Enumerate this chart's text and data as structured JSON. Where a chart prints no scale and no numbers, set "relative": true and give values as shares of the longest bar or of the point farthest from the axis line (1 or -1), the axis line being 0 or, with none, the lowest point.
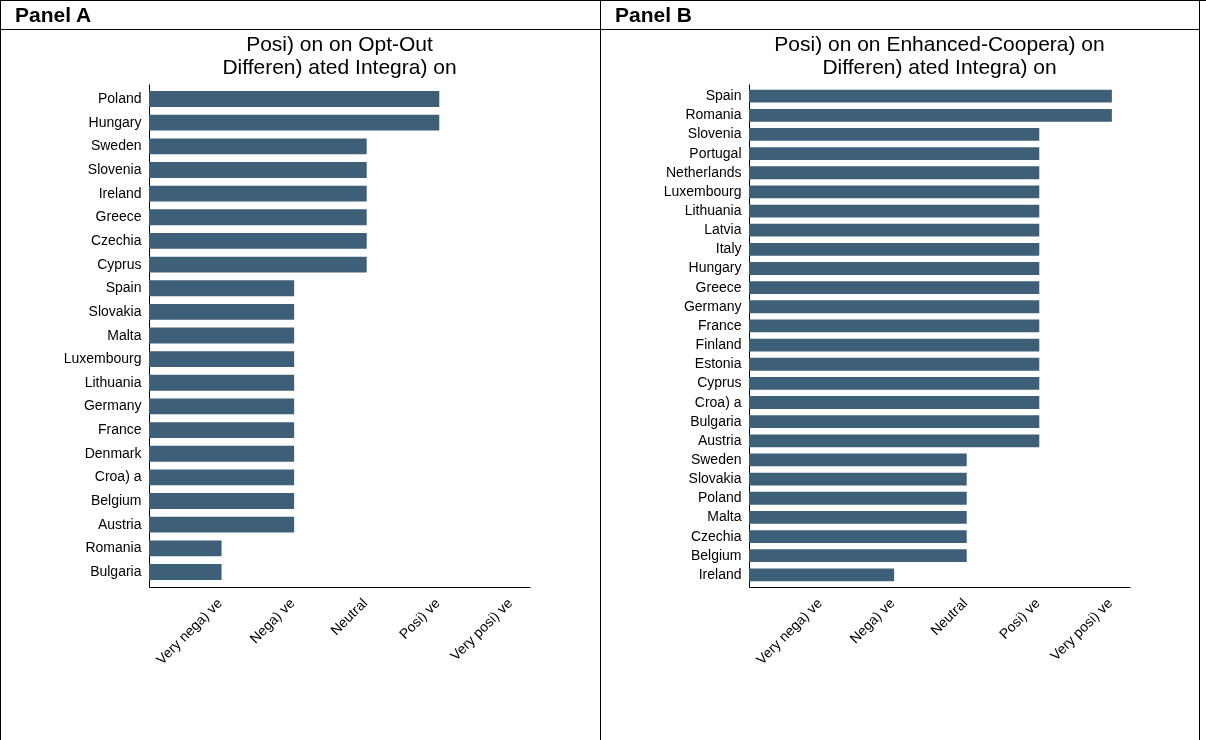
{
  "chart_data": [
    {
      "type": "bar",
      "orientation": "horizontal",
      "relative": true,
      "title": "Posi) on on Opt-Out\nDifferen) ated Integra) on",
      "annotations": [
        "Panel A",
        "Very nega) ve",
        "Nega) ve",
        "Neutral",
        "Posi) ve",
        "Very posi) ve"
      ],
      "categories": [
        "Poland",
        "Hungary",
        "Sweden",
        "Slovenia",
        "Ireland",
        "Greece",
        "Czechia",
        "Cyprus",
        "Spain",
        "Slovakia",
        "Malta",
        "Luxembourg",
        "Lithuania",
        "Germany",
        "France",
        "Denmark",
        "Croa) a",
        "Belgium",
        "Austria",
        "Romania",
        "Bulgaria"
      ],
      "values": [
        1,
        1,
        0.75,
        0.75,
        0.75,
        0.75,
        0.75,
        0.75,
        0.5,
        0.5,
        0.5,
        0.5,
        0.5,
        0.5,
        0.5,
        0.5,
        0.5,
        0.5,
        0.5,
        0.25,
        0.25
      ],
      "color": "#3e5f78"
    },
    {
      "type": "bar",
      "orientation": "horizontal",
      "relative": true,
      "title": "Posi) on on Enhanced-Coopera) on\nDifferen) ated Integra) on",
      "annotations": [
        "Panel B",
        "Very nega) ve",
        "Nega) ve",
        "Neutral",
        "Posi) ve",
        "Very posi) ve"
      ],
      "categories": [
        "Spain",
        "Romania",
        "Slovenia",
        "Portugal",
        "Netherlands",
        "Luxembourg",
        "Lithuania",
        "Latvia",
        "Italy",
        "Hungary",
        "Greece",
        "Germany",
        "France",
        "Finland",
        "Estonia",
        "Cyprus",
        "Croa) a",
        "Bulgaria",
        "Austria",
        "Sweden",
        "Slovakia",
        "Poland",
        "Malta",
        "Czechia",
        "Belgium",
        "Ireland"
      ],
      "values": [
        1,
        1,
        0.8,
        0.8,
        0.8,
        0.8,
        0.8,
        0.8,
        0.8,
        0.8,
        0.8,
        0.8,
        0.8,
        0.8,
        0.8,
        0.8,
        0.8,
        0.8,
        0.8,
        0.6,
        0.6,
        0.6,
        0.6,
        0.6,
        0.6,
        0.4
      ],
      "color": "#3e5f78"
    }
  ]
}
